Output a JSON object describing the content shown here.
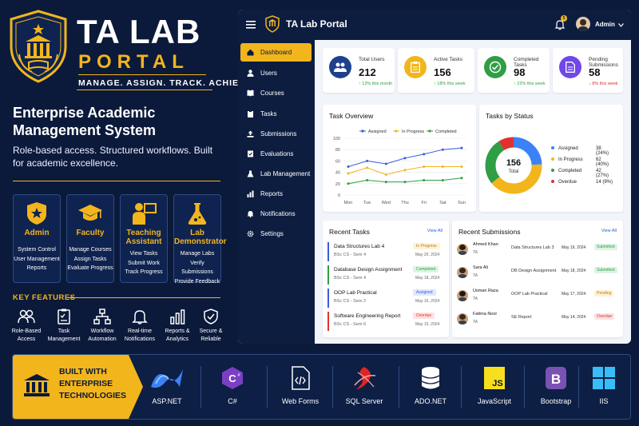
{
  "brand": {
    "title": "TA LAB",
    "subtitle": "PORTAL",
    "tagline": "MANAGE. ASSIGN. TRACK. ACHIEVE.",
    "headline": "Enterprise Academic Management System",
    "description": "Role-based access. Structured workflows. Built for academic excellence.",
    "gold": "#f2b51c",
    "navy": "#0b1a3b"
  },
  "roles": [
    {
      "title": "Admin",
      "icon": "crest-star-icon",
      "lines": [
        "System Control",
        "User Management",
        "Reports"
      ]
    },
    {
      "title": "Faculty",
      "icon": "graduation-cap-icon",
      "lines": [
        "Manage Courses",
        "Assign Tasks",
        "Evaluate Progress"
      ]
    },
    {
      "title": "Teaching Assistant",
      "icon": "presenter-icon",
      "lines": [
        "View Tasks",
        "Submit Work",
        "Track Progress"
      ]
    },
    {
      "title": "Lab Demonstrator",
      "icon": "flask-icon",
      "lines": [
        "Manage Labs",
        "Verify Submissions",
        "Provide Feedback"
      ]
    }
  ],
  "key_features": {
    "title": "KEY FEATURES",
    "items": [
      {
        "label1": "Role-Based",
        "label2": "Access",
        "icon": "users-icon"
      },
      {
        "label1": "Task",
        "label2": "Management",
        "icon": "clipboard-icon"
      },
      {
        "label1": "Workflow",
        "label2": "Automation",
        "icon": "workflow-icon"
      },
      {
        "label1": "Real-time",
        "label2": "Notifications",
        "icon": "bell-icon"
      },
      {
        "label1": "Reports &",
        "label2": "Analytics",
        "icon": "bar-chart-icon"
      },
      {
        "label1": "Secure &",
        "label2": "Reliable",
        "icon": "shield-check-icon"
      }
    ]
  },
  "bottom": {
    "line1": "BUILT WITH",
    "line2": "ENTERPRISE",
    "line3": "TECHNOLOGIES",
    "techs": [
      "ASP.NET",
      "C#",
      "Web Forms",
      "SQL Server",
      "ADO.NET",
      "JavaScript",
      "Bootstrap",
      "IIS"
    ]
  },
  "app": {
    "title": "TA Lab Portal",
    "notification_count": "5",
    "user": "Admin",
    "nav": [
      "Dashboard",
      "Users",
      "Courses",
      "Tasks",
      "Submissions",
      "Evaluations",
      "Lab Management",
      "Reports",
      "Notifications",
      "Settings"
    ],
    "stats": [
      {
        "label": "Total Users",
        "value": "212",
        "change": "↑ 12% this month",
        "color": "#1f3f8f",
        "icon": "users-icon"
      },
      {
        "label": "Active Tasks",
        "value": "156",
        "change": "↑ 18% this week",
        "color": "#f2b51c",
        "icon": "clipboard-icon"
      },
      {
        "label": "Completed Tasks",
        "value": "98",
        "change": "↑ 22% this week",
        "color": "#2f9e44",
        "icon": "check-circle-icon"
      },
      {
        "label": "Pending Submissions",
        "value": "58",
        "change": "↓ 8% this week",
        "color": "#7048e8",
        "icon": "document-icon"
      }
    ],
    "task_overview_title": "Task Overview",
    "tasks_by_status_title": "Tasks by Status",
    "recent_tasks_title": "Recent Tasks",
    "recent_submissions_title": "Recent Submissions",
    "view_all": "View All",
    "recent_tasks": [
      {
        "title": "Data Structures Lab 4",
        "sub": "BSc CS - Sem 4",
        "status": "In Progress",
        "date": "May 20, 2024"
      },
      {
        "title": "Database Design Assignment",
        "sub": "BSc CS - Sem 4",
        "status": "Completed",
        "date": "May 18, 2024"
      },
      {
        "title": "OOP Lab Practical",
        "sub": "BSc CS - Sem 2",
        "status": "Assigned",
        "date": "May 16, 2024"
      },
      {
        "title": "Software Engineering Report",
        "sub": "BSc CS - Sem 6",
        "status": "Overdue",
        "date": "May 15, 2024"
      }
    ],
    "recent_submissions": [
      {
        "name": "Ahmed Khan",
        "role": "TA",
        "course": "Data Structures Lab 3",
        "date": "May 19, 2024",
        "status": "Submitted"
      },
      {
        "name": "Sara Ali",
        "role": "TA",
        "course": "DB Design Assignment",
        "date": "May 18, 2024",
        "status": "Submitted"
      },
      {
        "name": "Usman Raza",
        "role": "TA",
        "course": "OOP Lab Practical",
        "date": "May 17, 2024",
        "status": "Pending"
      },
      {
        "name": "Fatima Noor",
        "role": "TA",
        "course": "SE Report",
        "date": "May 14, 2024",
        "status": "Overdue"
      }
    ],
    "status_colors": {
      "In Progress": [
        "#fff3d6",
        "#b7791f"
      ],
      "Completed": [
        "#dcf5e3",
        "#2f9e44"
      ],
      "Assigned": [
        "#e0e8ff",
        "#3b5bdb"
      ],
      "Overdue": [
        "#fde2e2",
        "#e03131"
      ],
      "Submitted": [
        "#dcf5e3",
        "#2f9e44"
      ],
      "Pending": [
        "#fff3d6",
        "#b7791f"
      ]
    }
  },
  "chart_data": [
    {
      "type": "line",
      "title": "Task Overview",
      "categories": [
        "Mon",
        "Tue",
        "Wed",
        "Thu",
        "Fri",
        "Sat",
        "Sun"
      ],
      "ylim": [
        0,
        100
      ],
      "yticks": [
        0,
        20,
        40,
        60,
        80,
        100
      ],
      "grid": true,
      "legend": "top",
      "series": [
        {
          "name": "Assigned",
          "color": "#3b5bdb",
          "values": [
            50,
            60,
            55,
            65,
            72,
            80,
            83
          ]
        },
        {
          "name": "In Progress",
          "color": "#f2b51c",
          "values": [
            38,
            48,
            36,
            44,
            50,
            50,
            50
          ]
        },
        {
          "name": "Completed",
          "color": "#2f9e44",
          "values": [
            20,
            26,
            23,
            23,
            26,
            26,
            30
          ]
        }
      ]
    },
    {
      "type": "pie",
      "title": "Tasks by Status",
      "donut": true,
      "center_value": "156",
      "center_label": "Total",
      "legend": "right",
      "slices": [
        {
          "name": "Assigned",
          "value": 38,
          "label": "38 (24%)",
          "color": "#3b82f6"
        },
        {
          "name": "In Progress",
          "value": 62,
          "label": "62 (40%)",
          "color": "#f2b51c"
        },
        {
          "name": "Completed",
          "value": 42,
          "label": "42 (27%)",
          "color": "#2f9e44"
        },
        {
          "name": "Overdue",
          "value": 14,
          "label": "14 (9%)",
          "color": "#e03131"
        }
      ]
    }
  ]
}
